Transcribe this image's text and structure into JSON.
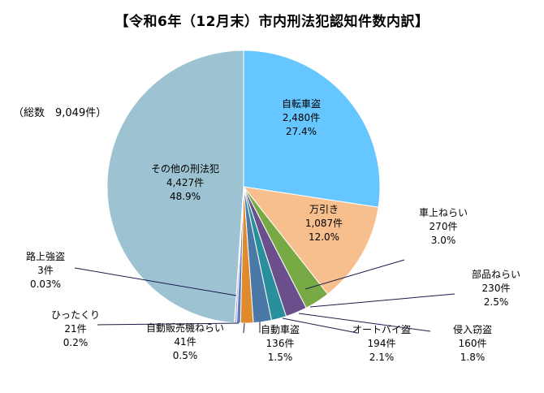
{
  "chart_title": "【令和6年（12月末）市内刑法犯認知件数内訳】",
  "total_label": "（総数　9,049件）",
  "chart_data": {
    "type": "pie",
    "title": "【令和6年（12月末）市内刑法犯認知件数内訳】",
    "total": "9,049",
    "slices": [
      {
        "name": "自転車盗",
        "count": "2,480件",
        "pct": "27.4%",
        "value": 2480,
        "color": "#66c6ff"
      },
      {
        "name": "万引き",
        "count": "1,087件",
        "pct": "12.0%",
        "value": 1087,
        "color": "#f7bf8e"
      },
      {
        "name": "車上ねらい",
        "count": "270件",
        "pct": "3.0%",
        "value": 270,
        "color": "#77aa44"
      },
      {
        "name": "部品ねらい",
        "count": "230件",
        "pct": "2.5%",
        "value": 230,
        "color": "#6a4f8c"
      },
      {
        "name": "侵入窃盗",
        "count": "160件",
        "pct": "1.8%",
        "value": 160,
        "color": "#2a8f9c"
      },
      {
        "name": "オートバイ盗",
        "count": "194件",
        "pct": "2.1%",
        "value": 194,
        "color": "#4b79a7"
      },
      {
        "name": "自動車盗",
        "count": "136件",
        "pct": "1.5%",
        "value": 136,
        "color": "#e08a2e"
      },
      {
        "name": "自動販売機ねらい",
        "count": "41件",
        "pct": "0.5%",
        "value": 41,
        "color": "#5a7bbf"
      },
      {
        "name": "ひったくり",
        "count": "21件",
        "pct": "0.2%",
        "value": 21,
        "color": "#a6a6e0"
      },
      {
        "name": "路上強盗",
        "count": "3件",
        "pct": "0.03%",
        "value": 3,
        "color": "#e06666"
      },
      {
        "name": "その他の刑法犯",
        "count": "4,427件",
        "pct": "48.9%",
        "value": 4427,
        "color": "#9dc3d3"
      }
    ]
  }
}
